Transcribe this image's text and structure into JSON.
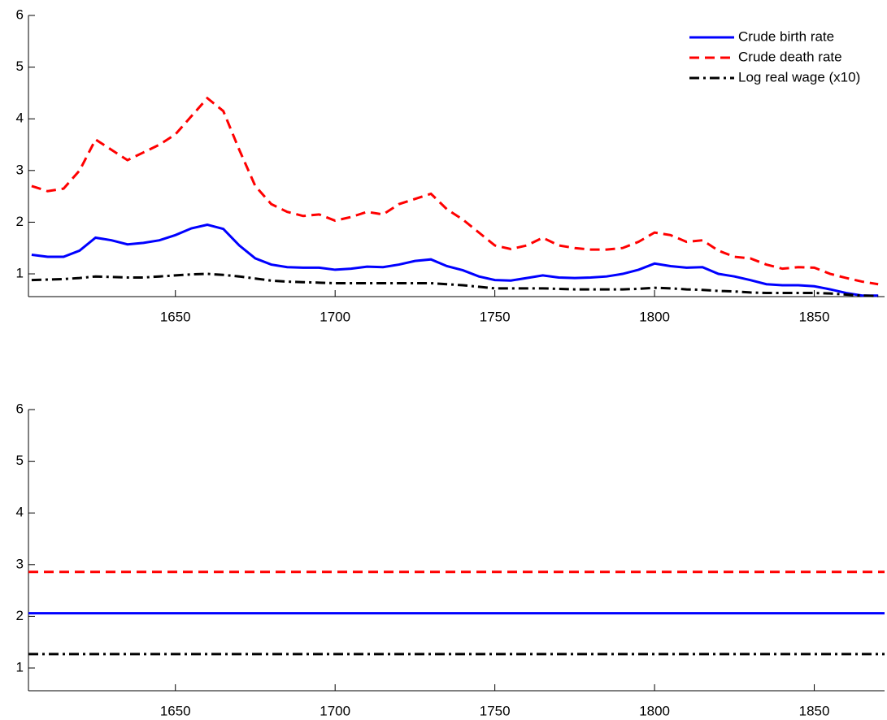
{
  "chart_data": [
    {
      "type": "line",
      "x": [
        1605,
        1610,
        1615,
        1620,
        1625,
        1630,
        1635,
        1640,
        1645,
        1650,
        1655,
        1660,
        1665,
        1670,
        1675,
        1680,
        1685,
        1690,
        1695,
        1700,
        1705,
        1710,
        1715,
        1720,
        1725,
        1730,
        1735,
        1740,
        1745,
        1750,
        1755,
        1760,
        1765,
        1770,
        1775,
        1780,
        1785,
        1790,
        1795,
        1800,
        1805,
        1810,
        1815,
        1820,
        1825,
        1830,
        1835,
        1840,
        1845,
        1850,
        1855,
        1860,
        1865,
        1870
      ],
      "series": [
        {
          "name": "Crude birth rate",
          "color": "#0000ff",
          "style": "solid",
          "values": [
            1.37,
            1.33,
            1.33,
            1.45,
            1.7,
            1.65,
            1.57,
            1.6,
            1.65,
            1.75,
            1.88,
            1.95,
            1.87,
            1.55,
            1.3,
            1.18,
            1.13,
            1.12,
            1.12,
            1.08,
            1.1,
            1.14,
            1.13,
            1.18,
            1.25,
            1.28,
            1.15,
            1.07,
            0.95,
            0.88,
            0.87,
            0.92,
            0.97,
            0.93,
            0.92,
            0.93,
            0.95,
            1.0,
            1.08,
            1.2,
            1.15,
            1.12,
            1.13,
            1.0,
            0.95,
            0.88,
            0.8,
            0.78,
            0.78,
            0.76,
            0.7,
            0.63,
            0.58,
            0.58
          ]
        },
        {
          "name": "Crude death rate",
          "color": "#ff0000",
          "style": "dashed",
          "values": [
            2.7,
            2.6,
            2.65,
            3.0,
            3.6,
            3.4,
            3.2,
            3.35,
            3.5,
            3.7,
            4.05,
            4.4,
            4.15,
            3.4,
            2.7,
            2.35,
            2.2,
            2.12,
            2.15,
            2.03,
            2.1,
            2.2,
            2.15,
            2.35,
            2.45,
            2.55,
            2.25,
            2.05,
            1.8,
            1.55,
            1.48,
            1.55,
            1.7,
            1.55,
            1.5,
            1.47,
            1.47,
            1.5,
            1.62,
            1.8,
            1.75,
            1.62,
            1.65,
            1.45,
            1.33,
            1.3,
            1.18,
            1.1,
            1.13,
            1.12,
            1.0,
            0.92,
            0.85,
            0.8
          ]
        },
        {
          "name": "Log real wage (x10)",
          "color": "#000000",
          "style": "dashdot",
          "values": [
            0.88,
            0.89,
            0.9,
            0.92,
            0.95,
            0.94,
            0.93,
            0.93,
            0.95,
            0.97,
            0.99,
            1.0,
            0.98,
            0.95,
            0.91,
            0.87,
            0.85,
            0.84,
            0.83,
            0.82,
            0.82,
            0.82,
            0.82,
            0.82,
            0.82,
            0.82,
            0.8,
            0.78,
            0.75,
            0.72,
            0.72,
            0.72,
            0.72,
            0.71,
            0.7,
            0.7,
            0.7,
            0.7,
            0.71,
            0.73,
            0.72,
            0.7,
            0.69,
            0.67,
            0.66,
            0.64,
            0.63,
            0.63,
            0.63,
            0.63,
            0.62,
            0.6,
            0.58,
            0.57
          ]
        }
      ],
      "xlim": [
        1604,
        1872
      ],
      "ylim": [
        0.56,
        6
      ],
      "xticks": [
        1650,
        1700,
        1750,
        1800,
        1850
      ],
      "yticks": [
        1,
        2,
        3,
        4,
        5,
        6
      ],
      "legend": "upper right"
    },
    {
      "type": "line",
      "x": [
        1604,
        1872
      ],
      "series": [
        {
          "color": "#0000ff",
          "style": "solid",
          "values": [
            2.06,
            2.06
          ]
        },
        {
          "color": "#ff0000",
          "style": "dashed",
          "values": [
            2.86,
            2.86
          ]
        },
        {
          "color": "#000000",
          "style": "dashdot",
          "values": [
            1.27,
            1.27
          ]
        }
      ],
      "xlim": [
        1604,
        1872
      ],
      "ylim": [
        0.56,
        6
      ],
      "xticks": [
        1650,
        1700,
        1750,
        1800,
        1850
      ],
      "yticks": [
        1,
        2,
        3,
        4,
        5,
        6
      ]
    }
  ]
}
